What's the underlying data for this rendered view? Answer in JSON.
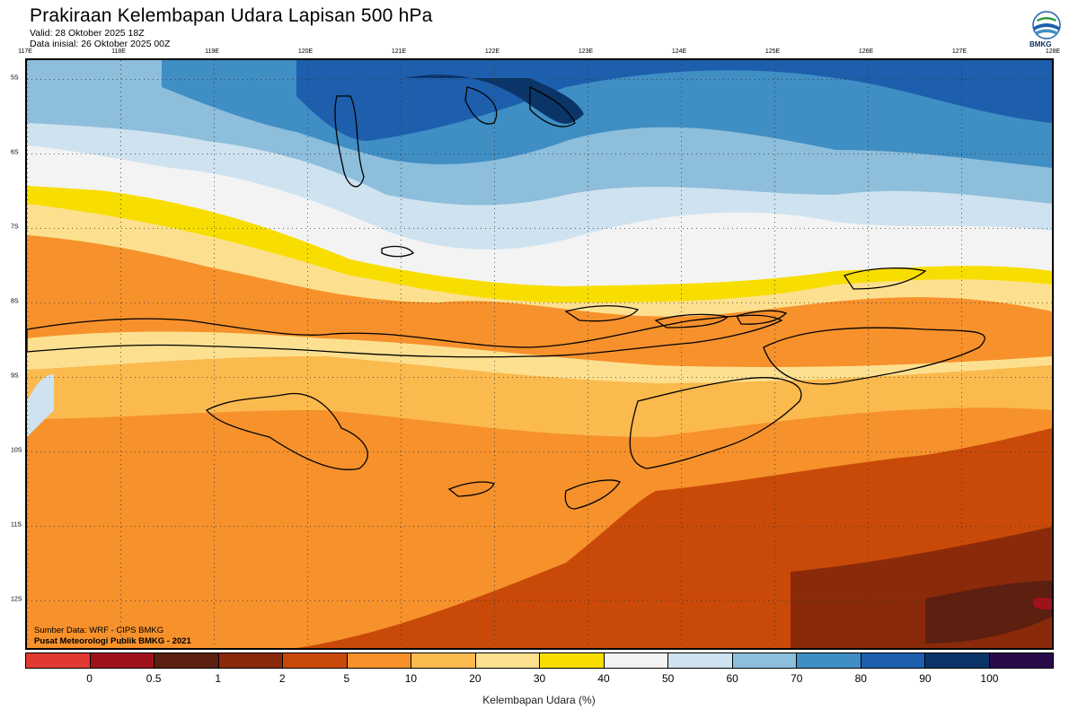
{
  "header": {
    "title": "Prakiraan Kelembapan Udara Lapisan 500 hPa",
    "valid": "Valid: 28 Oktober 2025 18Z",
    "init": "Data inisial: 26 Oktober 2025 00Z",
    "logo_text": "BMKG"
  },
  "axes": {
    "lon_labels": [
      "117E",
      "118E",
      "119E",
      "120E",
      "121E",
      "122E",
      "123E",
      "124E",
      "125E",
      "126E",
      "127E",
      "128E"
    ],
    "lat_labels": [
      "5S",
      "6S",
      "7S",
      "8S",
      "9S",
      "10S",
      "11S",
      "12S"
    ]
  },
  "footer": {
    "source": "Sumber Data: WRF - CIPS BMKG",
    "publisher": "Pusat Meteorologi Publik BMKG - 2021"
  },
  "colorbar": {
    "label": "Kelembapan Udara (%)",
    "ticks": [
      "0",
      "0.5",
      "1",
      "2",
      "5",
      "10",
      "20",
      "30",
      "40",
      "50",
      "60",
      "70",
      "80",
      "90",
      "100"
    ],
    "colors": [
      "#e03a32",
      "#a0121b",
      "#5c1f10",
      "#8a2a0a",
      "#c94a08",
      "#f6912c",
      "#fbba4e",
      "#fde08f",
      "#f8de00",
      "#f3f3f3",
      "#cfe2ef",
      "#8dbedb",
      "#3f8ec4",
      "#1d5fad",
      "#0b3569",
      "#2a0b4a"
    ]
  },
  "palette": {
    "land_outline": "#000000",
    "grid": "#333333"
  }
}
